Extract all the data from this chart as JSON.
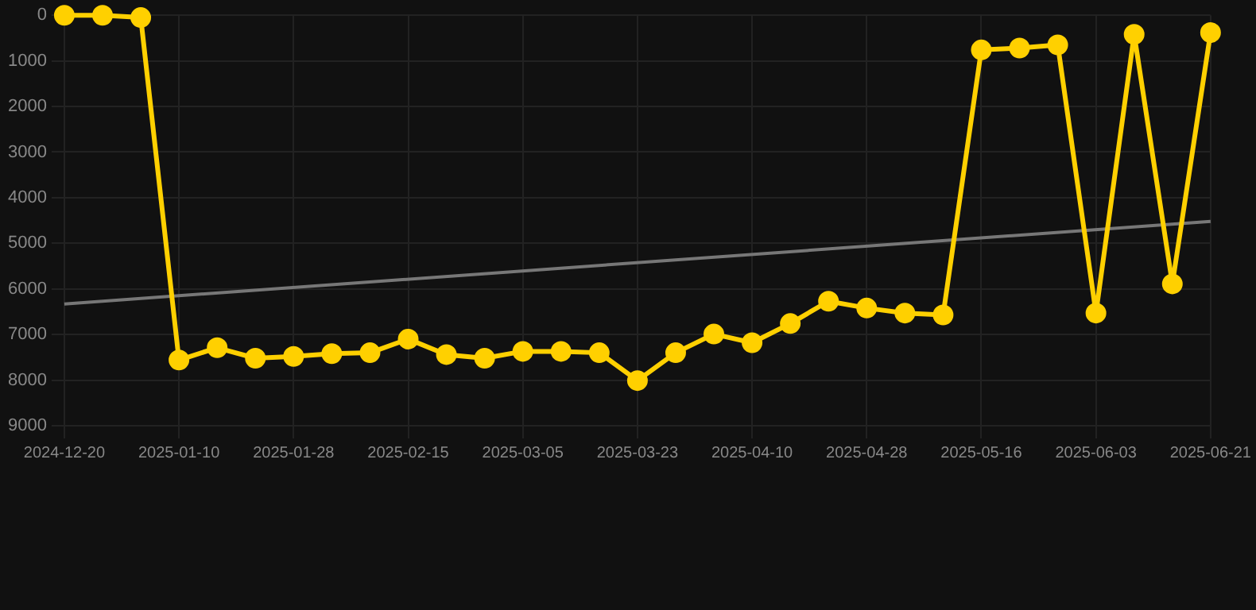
{
  "chart_data": {
    "type": "line",
    "categories": [
      "2024-12-20",
      null,
      null,
      "2025-01-10",
      null,
      null,
      "2025-01-28",
      null,
      null,
      "2025-02-15",
      null,
      null,
      "2025-03-05",
      null,
      null,
      "2025-03-23",
      null,
      null,
      "2025-04-10",
      null,
      null,
      "2025-04-28",
      null,
      null,
      "2025-05-16",
      null,
      null,
      "2025-06-03",
      null,
      null,
      "2025-06-21"
    ],
    "series": [
      {
        "color": "#ffd000",
        "marker": "circle",
        "values": [
          0,
          0,
          50,
          7560,
          7290,
          7520,
          7480,
          7420,
          7400,
          7100,
          7440,
          7520,
          7370,
          7370,
          7400,
          8010,
          7400,
          6990,
          7180,
          6760,
          6270,
          6420,
          6530,
          6570,
          760,
          720,
          650,
          6530,
          420,
          5890,
          380
        ]
      },
      {
        "type": "line",
        "color": "#777777",
        "marker": "none",
        "values": [
          6330,
          null,
          null,
          null,
          null,
          null,
          null,
          null,
          null,
          null,
          null,
          null,
          null,
          null,
          null,
          null,
          null,
          null,
          null,
          null,
          null,
          null,
          null,
          null,
          null,
          null,
          null,
          null,
          null,
          null,
          4520
        ]
      }
    ],
    "ylim": [
      9000,
      0
    ],
    "yticks": [
      0,
      1000,
      2000,
      3000,
      4000,
      5000,
      6000,
      7000,
      8000,
      9000
    ],
    "grid": true,
    "legend": false
  }
}
